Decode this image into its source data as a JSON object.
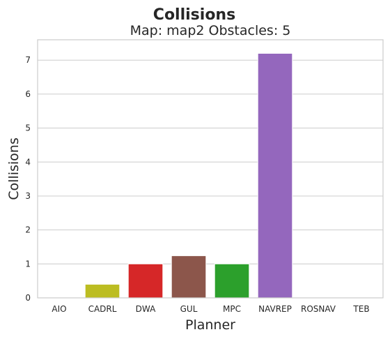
{
  "chart_data": {
    "type": "bar",
    "title": "Collisions",
    "subtitle": "Map: map2 Obstacles: 5",
    "xlabel": "Planner",
    "ylabel": "Collisions",
    "categories": [
      "AIO",
      "CADRL",
      "DWA",
      "GUL",
      "MPC",
      "NAVREP",
      "ROSNAV",
      "TEB"
    ],
    "values": [
      0,
      0.4,
      1.0,
      1.24,
      1.0,
      7.2,
      0,
      0
    ],
    "colors": [
      "#1f77b4",
      "#bcbd22",
      "#d62728",
      "#8c564b",
      "#2ca02c",
      "#9467bd",
      "#17becf",
      "#ff7f0e"
    ],
    "ylim": [
      0,
      7.6
    ],
    "yticks": [
      0,
      1,
      2,
      3,
      4,
      5,
      6,
      7
    ],
    "grid": "y"
  }
}
